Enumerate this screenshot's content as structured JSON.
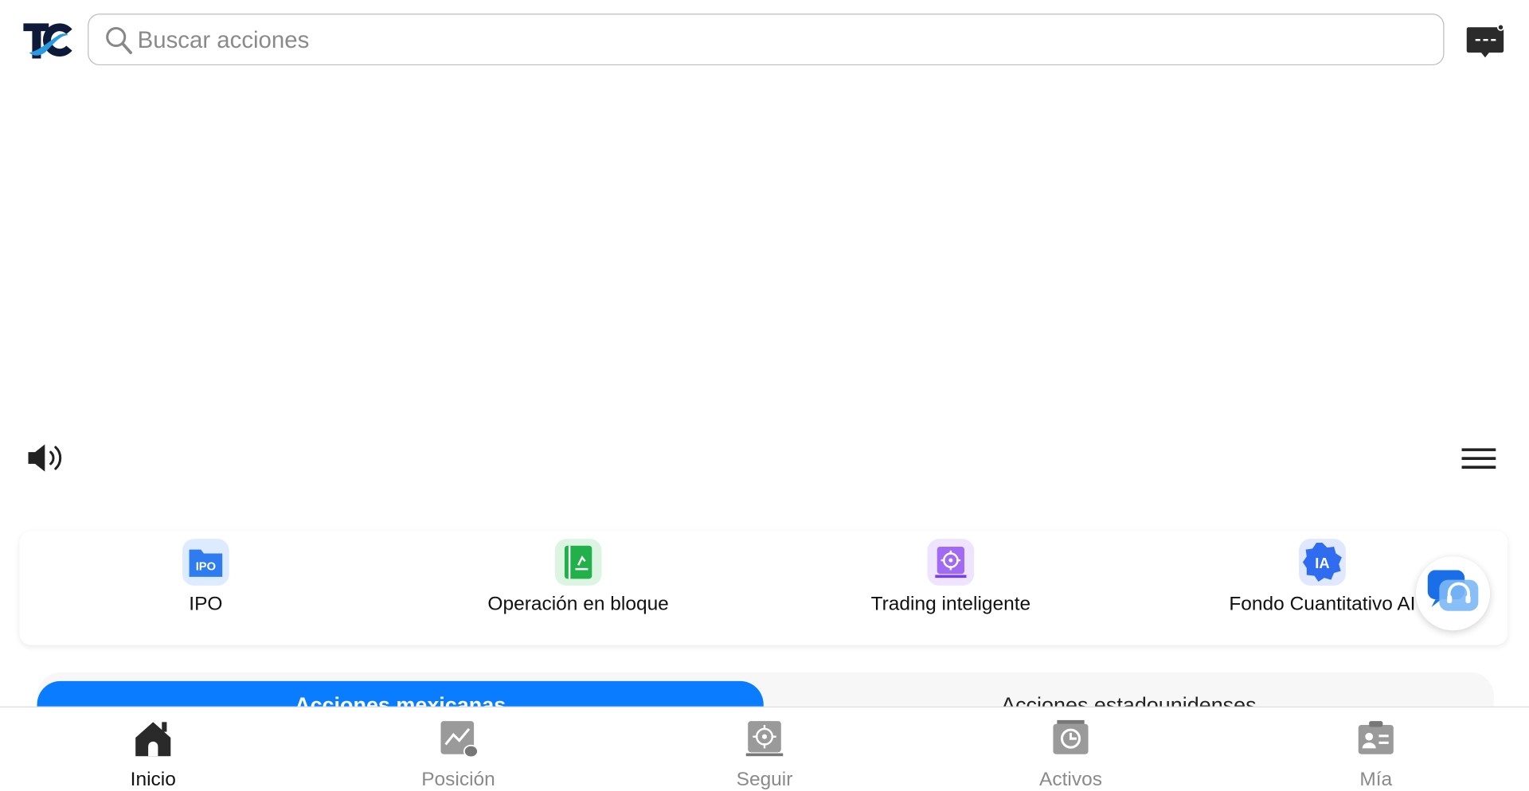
{
  "header": {
    "logo_text": "TC",
    "search_placeholder": "Buscar acciones"
  },
  "quick_actions": [
    {
      "label": "IPO",
      "icon": "ipo-folder-icon",
      "icon_text": "IPO"
    },
    {
      "label": "Operación en bloque",
      "icon": "block-trade-book-icon"
    },
    {
      "label": "Trading inteligente",
      "icon": "smart-trading-target-icon"
    },
    {
      "label": "Fondo Cuantitativo AI",
      "icon": "ai-fund-badge-icon",
      "icon_text": "IA"
    }
  ],
  "market_tabs": {
    "items": [
      "Acciones mexicanas",
      "Acciones estadounidenses"
    ],
    "active": 0
  },
  "bottom_nav": {
    "items": [
      "Inicio",
      "Posición",
      "Seguir",
      "Activos",
      "Mía"
    ],
    "active": 0
  },
  "colors": {
    "accent": "#0a7cff",
    "active_nav": "#111111",
    "inactive_nav": "#8a8a8a"
  }
}
